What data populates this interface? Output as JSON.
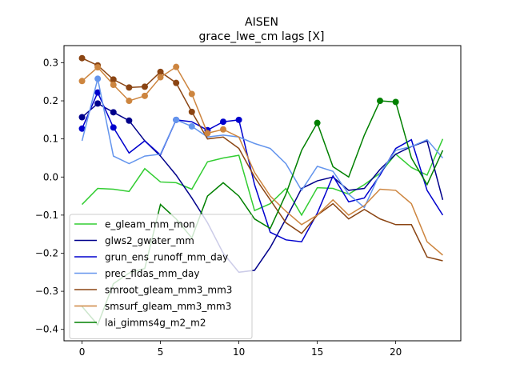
{
  "chart_data": {
    "type": "line",
    "title": "AISEN",
    "subtitle": "grace_lwe_cm lags [X]",
    "xlabel": "",
    "ylabel": "",
    "xlim": [
      -1.15,
      24.15
    ],
    "ylim": [
      -0.43,
      0.345
    ],
    "xticks": [
      0,
      5,
      10,
      15,
      20
    ],
    "yticks": [
      -0.4,
      -0.3,
      -0.2,
      -0.1,
      0.0,
      0.1,
      0.2,
      0.3
    ],
    "ytick_labels": [
      "−0.4",
      "−0.3",
      "−0.2",
      "−0.1",
      "0.0",
      "0.1",
      "0.2",
      "0.3"
    ],
    "legend_position": "lower-left",
    "grid": false,
    "x": [
      0,
      1,
      2,
      3,
      4,
      5,
      6,
      7,
      8,
      9,
      10,
      11,
      12,
      13,
      14,
      15,
      16,
      17,
      18,
      19,
      20,
      21,
      22,
      23
    ],
    "series": [
      {
        "name": "e_gleam_mm_mon",
        "color": "#32cd32",
        "values": [
          -0.072,
          -0.03,
          -0.032,
          -0.038,
          0.022,
          -0.013,
          -0.015,
          -0.032,
          0.04,
          0.05,
          0.057,
          -0.088,
          -0.07,
          -0.03,
          -0.1,
          -0.028,
          -0.03,
          -0.045,
          -0.02,
          0.01,
          0.06,
          0.025,
          0.005,
          0.1
        ],
        "markers": []
      },
      {
        "name": "glws2_gwater_mm",
        "color": "#00008b",
        "values": [
          0.157,
          0.193,
          0.17,
          0.148,
          0.095,
          0.055,
          0.005,
          -0.055,
          -0.12,
          -0.2,
          -0.25,
          -0.245,
          -0.185,
          -0.11,
          -0.03,
          -0.01,
          0.0,
          -0.035,
          -0.03,
          0.02,
          0.06,
          0.08,
          0.095,
          -0.06
        ],
        "markers": [
          0,
          1,
          2,
          3
        ]
      },
      {
        "name": "grun_ens_runoff_mm_day",
        "color": "#0000cd",
        "values": [
          0.127,
          0.222,
          0.13,
          0.063,
          0.095,
          0.058,
          0.15,
          0.145,
          0.123,
          0.145,
          0.15,
          -0.02,
          -0.145,
          -0.165,
          -0.17,
          -0.095,
          0.003,
          -0.065,
          -0.055,
          0.005,
          0.075,
          0.098,
          -0.035,
          -0.1
        ],
        "markers": [
          0,
          1,
          2,
          6,
          8,
          9,
          10
        ]
      },
      {
        "name": "prec_fldas_mm_day",
        "color": "#6495ed",
        "values": [
          0.095,
          0.258,
          0.055,
          0.035,
          0.055,
          0.06,
          0.15,
          0.133,
          0.105,
          0.11,
          0.105,
          0.088,
          0.075,
          0.035,
          -0.035,
          0.028,
          0.015,
          -0.045,
          -0.08,
          0.01,
          0.07,
          0.08,
          0.098,
          0.05
        ],
        "markers": [
          1,
          6,
          7
        ]
      },
      {
        "name": "smroot_gleam_mm3_mm3",
        "color": "#8b4513",
        "values": [
          0.312,
          0.293,
          0.256,
          0.235,
          0.237,
          0.276,
          0.247,
          0.171,
          0.1,
          0.105,
          0.075,
          0.0,
          -0.06,
          -0.12,
          -0.148,
          -0.1,
          -0.07,
          -0.11,
          -0.085,
          -0.11,
          -0.125,
          -0.125,
          -0.21,
          -0.22
        ],
        "markers": [
          0,
          1,
          2,
          3,
          4,
          5,
          6,
          7
        ]
      },
      {
        "name": "smsurf_gleam_mm3_mm3",
        "color": "#cd853f",
        "values": [
          0.252,
          0.288,
          0.242,
          0.2,
          0.213,
          0.262,
          0.289,
          0.218,
          0.115,
          0.125,
          0.105,
          0.012,
          -0.05,
          -0.09,
          -0.125,
          -0.1,
          -0.06,
          -0.1,
          -0.075,
          -0.032,
          -0.035,
          -0.07,
          -0.17,
          -0.205
        ],
        "markers": [
          0,
          1,
          2,
          3,
          4,
          5,
          6,
          7,
          8,
          9
        ]
      },
      {
        "name": "lai_gimms4g_m2_m2",
        "color": "#008000",
        "values": [
          -0.34,
          -0.388,
          -0.28,
          -0.252,
          -0.24,
          -0.072,
          -0.11,
          -0.16,
          -0.05,
          -0.015,
          -0.05,
          -0.11,
          -0.135,
          -0.045,
          0.07,
          0.142,
          0.027,
          0.0,
          0.11,
          0.2,
          0.197,
          0.05,
          -0.02,
          0.07
        ],
        "markers": [
          15,
          19,
          20
        ]
      }
    ]
  }
}
